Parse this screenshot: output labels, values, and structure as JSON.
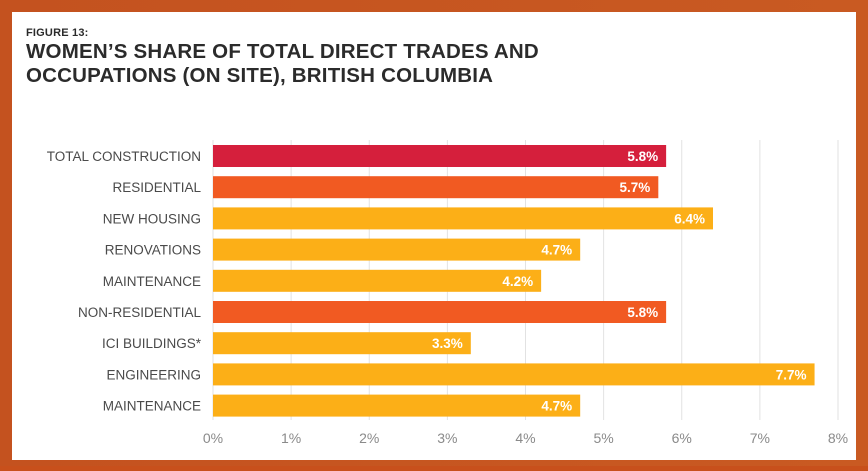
{
  "figure": {
    "label": "FIGURE 13:",
    "title": "WOMEN’S SHARE OF TOTAL DIRECT TRADES AND OCCUPATIONS (ON SITE), BRITISH COLUMBIA"
  },
  "colors": {
    "total": "#d51f3c",
    "segment": "#f15a22",
    "subsegment": "#fcaf17",
    "grid": "#e2e2e2",
    "tick_text": "#8a8a8a",
    "category_text": "#4a4a4a",
    "value_text": "#ffffff"
  },
  "chart_data": {
    "type": "bar",
    "orientation": "horizontal",
    "categories": [
      "TOTAL CONSTRUCTION",
      "RESIDENTIAL",
      "NEW HOUSING",
      "RENOVATIONS",
      "MAINTENANCE",
      "NON-RESIDENTIAL",
      "ICI BUILDINGS*",
      "ENGINEERING",
      "MAINTENANCE"
    ],
    "values": [
      5.8,
      5.7,
      6.4,
      4.7,
      4.2,
      5.8,
      3.3,
      7.7,
      4.7
    ],
    "value_labels": [
      "5.8%",
      "5.7%",
      "6.4%",
      "4.7%",
      "4.2%",
      "5.8%",
      "3.3%",
      "7.7%",
      "4.7%"
    ],
    "bar_levels": [
      "total",
      "segment",
      "subsegment",
      "subsegment",
      "subsegment",
      "segment",
      "subsegment",
      "subsegment",
      "subsegment"
    ],
    "xlim": [
      0,
      8
    ],
    "xticks": [
      "0%",
      "1%",
      "2%",
      "3%",
      "4%",
      "5%",
      "6%",
      "7%",
      "8%"
    ],
    "grid": true,
    "legend": "none"
  }
}
